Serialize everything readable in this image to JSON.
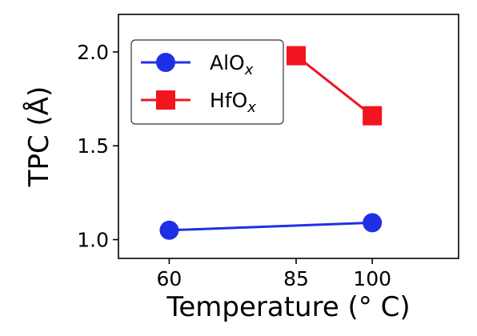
{
  "chart_data": {
    "type": "line",
    "xlabel": "Temperature (° C)",
    "ylabel": "TPC (Å)",
    "xlim": [
      50,
      117
    ],
    "ylim": [
      0.9,
      2.2
    ],
    "xticks": [
      60,
      85,
      100
    ],
    "yticks": [
      1.0,
      1.5,
      2.0
    ],
    "ytick_labels": [
      "1.0",
      "1.5",
      "2.0"
    ],
    "legend_position": "upper-left",
    "grid": false,
    "series": [
      {
        "name": "AlO",
        "subscript": "x",
        "color": "#1f2fe6",
        "marker": "circle",
        "x": [
          60,
          100
        ],
        "y": [
          1.05,
          1.09
        ]
      },
      {
        "name": "HfO",
        "subscript": "x",
        "color": "#f2141e",
        "marker": "square",
        "x": [
          85,
          100
        ],
        "y": [
          1.98,
          1.66
        ]
      }
    ]
  }
}
